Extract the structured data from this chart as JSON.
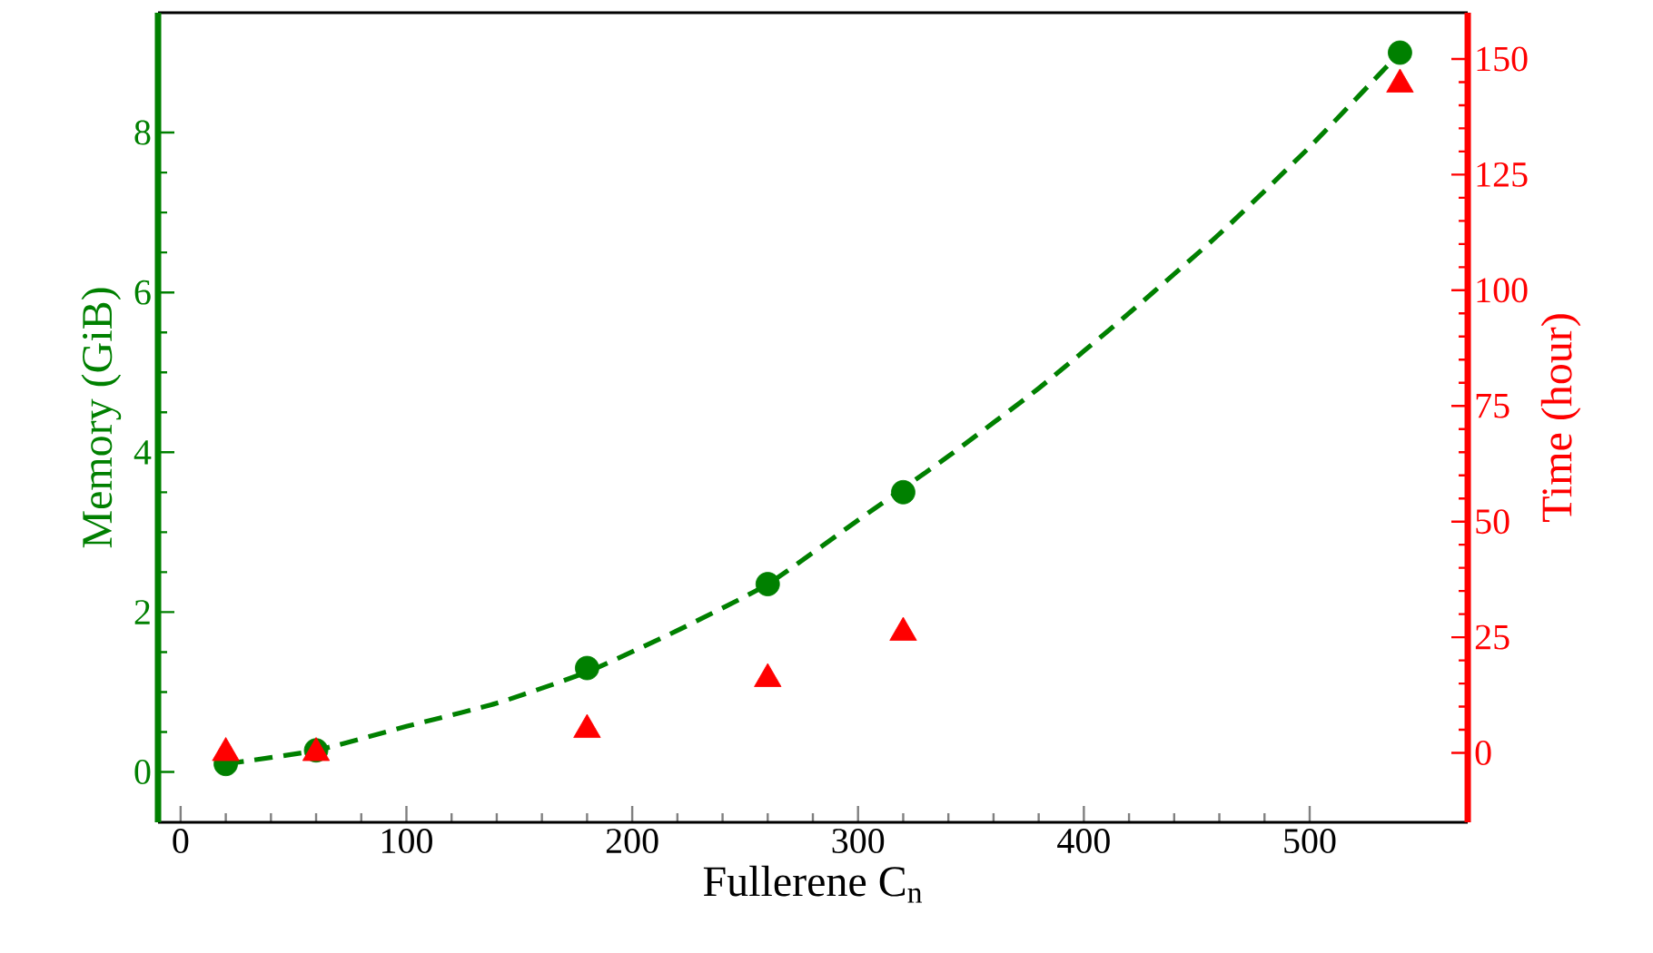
{
  "chart_data": {
    "type": "scatter",
    "xlabel": "Fullerene C$_{n}$",
    "ylabel": "Memory (GiB)",
    "y2label": "Time (hour)",
    "xlim": [
      -10,
      570
    ],
    "ylim": [
      -0.63,
      9.5
    ],
    "y2lim": [
      -15,
      160
    ],
    "xticks": [
      0,
      100,
      200,
      300,
      400,
      500
    ],
    "yticks": [
      0,
      2,
      4,
      6,
      8
    ],
    "y2ticks": [
      0,
      25,
      50,
      75,
      100,
      125,
      150
    ],
    "grid": false,
    "series": [
      {
        "type": "line",
        "color": "#008000",
        "line_style": "dashed",
        "marker": "none",
        "x": [
          20,
          60,
          100,
          140,
          180,
          220,
          260,
          300,
          340,
          380,
          420,
          460,
          500,
          540
        ],
        "values": [
          0.1,
          0.27,
          0.57,
          0.86,
          1.25,
          1.77,
          2.35,
          3.15,
          3.95,
          4.8,
          5.74,
          6.73,
          7.82,
          9.0
        ]
      },
      {
        "color": "#008000",
        "marker": "circle",
        "x": [
          20,
          60,
          180,
          260,
          320,
          540
        ],
        "values": [
          0.1,
          0.27,
          1.3,
          2.35,
          3.5,
          9.0
        ]
      },
      {
        "type": "scatter",
        "axis": "y2",
        "color": "#ff0000",
        "marker": "triangle",
        "x": [
          20,
          60,
          180,
          260,
          320,
          540
        ],
        "values": [
          0,
          0,
          5,
          16,
          26,
          144.5
        ]
      }
    ]
  }
}
